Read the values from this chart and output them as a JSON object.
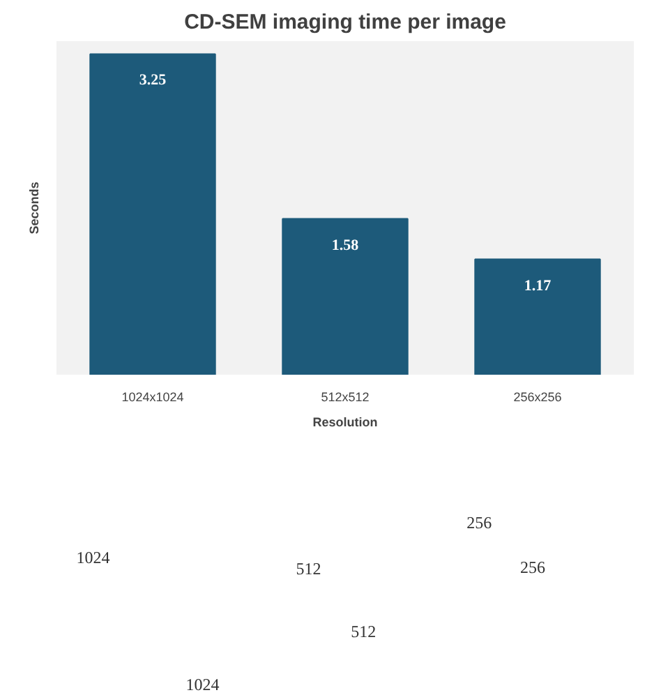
{
  "chart_data": {
    "type": "bar",
    "title": "CD-SEM imaging time per image",
    "xlabel": "Resolution",
    "ylabel": "Seconds",
    "categories": [
      "1024x1024",
      "512x512",
      "256x256"
    ],
    "values": [
      3.25,
      1.58,
      1.17
    ],
    "color": "#1d5a7a",
    "data_labels": true,
    "tick_labels": "x",
    "grid": false,
    "annotations": [
      "1024",
      "1024",
      "512",
      "512",
      "256",
      "256"
    ]
  }
}
